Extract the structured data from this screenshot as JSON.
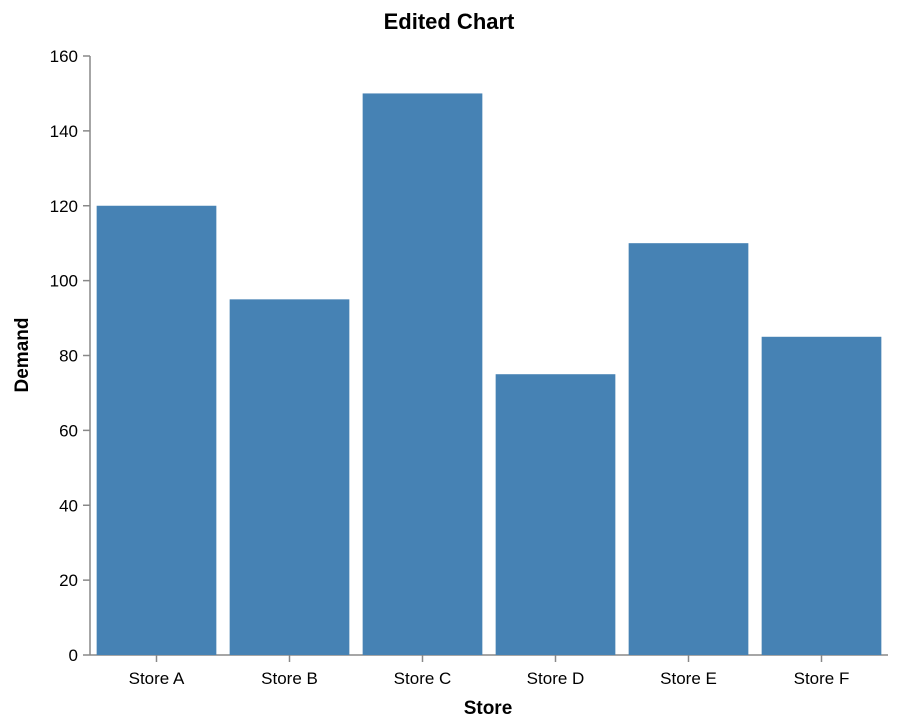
{
  "chart_data": {
    "type": "bar",
    "title": "Edited Chart",
    "xlabel": "Store",
    "ylabel": "Demand",
    "categories": [
      "Store A",
      "Store B",
      "Store C",
      "Store D",
      "Store E",
      "Store F"
    ],
    "values": [
      120,
      95,
      150,
      75,
      110,
      85
    ],
    "ylim": [
      0,
      160
    ],
    "yticks": [
      0,
      20,
      40,
      60,
      80,
      100,
      120,
      140,
      160
    ],
    "grid": false,
    "bar_color": "#4682b4",
    "axis_color": "#888888"
  }
}
